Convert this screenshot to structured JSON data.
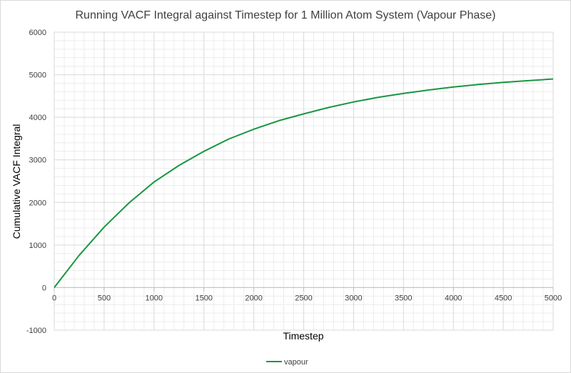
{
  "colors": {
    "series": "#1a9641",
    "major_grid": "#d9d9d9",
    "minor_grid": "#ececec",
    "axis": "#bfbfbf",
    "text": "#404040"
  },
  "chart_data": {
    "type": "line",
    "title": "Running VACF Integral against Timestep for 1 Million Atom System (Vapour Phase)",
    "xlabel": "Timestep",
    "ylabel": "Cumulative VACF Integral",
    "xlim": [
      0,
      5000
    ],
    "ylim": [
      -1000,
      6000
    ],
    "x_ticks": [
      0,
      500,
      1000,
      1500,
      2000,
      2500,
      3000,
      3500,
      4000,
      4500,
      5000
    ],
    "y_ticks": [
      -1000,
      0,
      1000,
      2000,
      3000,
      4000,
      5000,
      6000
    ],
    "grid": true,
    "minor_grid": true,
    "legend_position": "bottom",
    "series": [
      {
        "name": "vapour",
        "x": [
          0,
          250,
          500,
          750,
          1000,
          1250,
          1500,
          1750,
          2000,
          2250,
          2500,
          2750,
          3000,
          3250,
          3500,
          3750,
          4000,
          4250,
          4500,
          4750,
          5000
        ],
        "values": [
          0,
          760,
          1420,
          1990,
          2480,
          2870,
          3200,
          3490,
          3720,
          3920,
          4080,
          4230,
          4360,
          4470,
          4560,
          4640,
          4710,
          4770,
          4820,
          4860,
          4900
        ]
      }
    ]
  }
}
